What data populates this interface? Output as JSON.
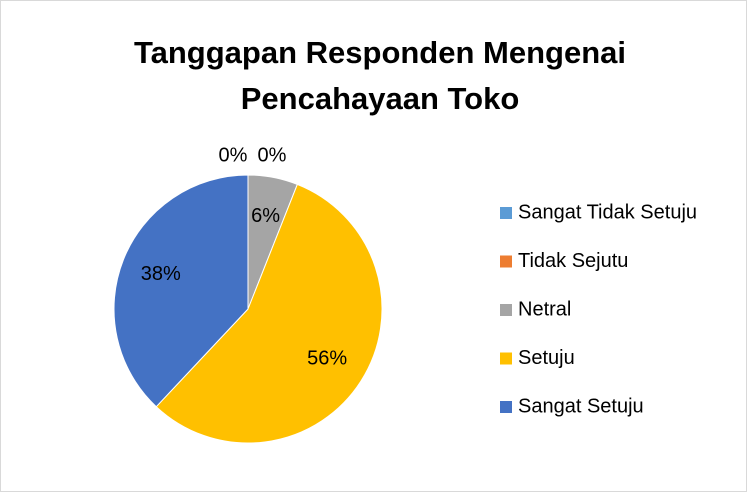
{
  "chart_data": {
    "type": "pie",
    "title": "Tanggapan Responden Mengenai Pencahayaan Toko",
    "categories": [
      "Sangat Tidak Setuju",
      "Tidak Sejutu",
      "Netral",
      "Setuju",
      "Sangat Setuju"
    ],
    "values": [
      0,
      0,
      6,
      56,
      38
    ],
    "value_labels": [
      "0%",
      "0%",
      "6%",
      "56%",
      "38%"
    ],
    "colors": [
      "#5b9bd5",
      "#ed7d31",
      "#a5a5a5",
      "#ffc000",
      "#4472c4"
    ],
    "legend": "right"
  }
}
